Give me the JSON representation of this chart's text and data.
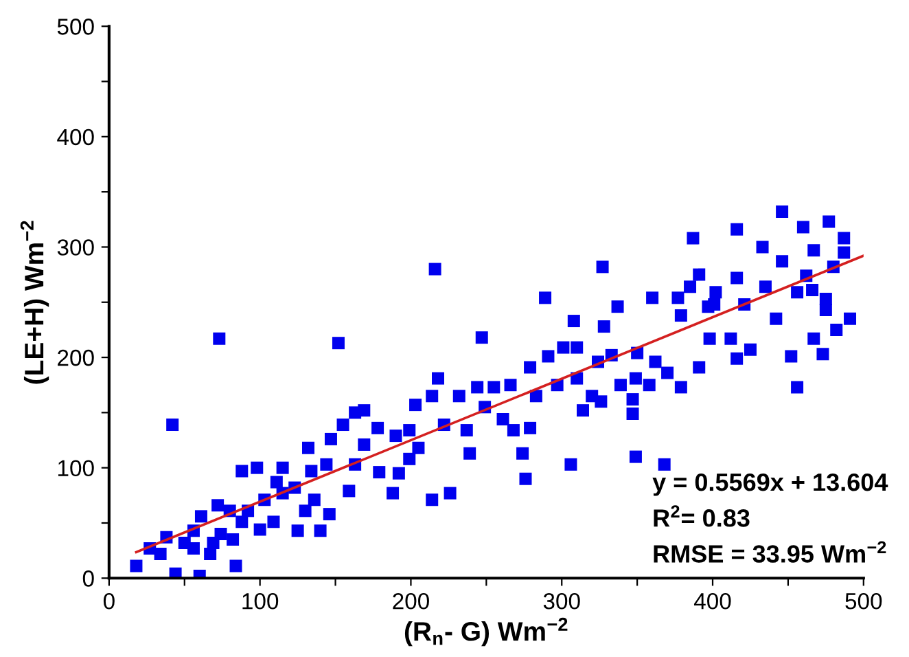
{
  "chart_data": {
    "type": "scatter",
    "xlabel": "(R$_{n}$- G) Wm$^{−2}$",
    "ylabel": "(LE+H) Wm$^{−2}$",
    "xlim": [
      0,
      500
    ],
    "ylim": [
      0,
      500
    ],
    "xticks": [
      0,
      {
        "value": 50,
        "label": null
      },
      100,
      {
        "value": 150,
        "label": null
      },
      200,
      {
        "value": 250,
        "label": null
      },
      300,
      {
        "value": 350,
        "label": null
      },
      400,
      {
        "value": 450,
        "label": null
      },
      500
    ],
    "yticks": [
      0,
      {
        "value": 50,
        "label": null
      },
      100,
      {
        "value": 150,
        "label": null
      },
      200,
      {
        "value": 250,
        "label": null
      },
      300,
      {
        "value": 350,
        "label": null
      },
      400,
      {
        "value": 450,
        "label": null
      },
      500
    ],
    "grid": false,
    "legend": false,
    "marker": "square",
    "series": [
      {
        "color": "#0000ee",
        "x": [
          18,
          73,
          42,
          44,
          60,
          84,
          27,
          34,
          38,
          50,
          56,
          61,
          56,
          69,
          74,
          72,
          80,
          88,
          88,
          98,
          100,
          103,
          109,
          111,
          115,
          123,
          125,
          130,
          132,
          134,
          140,
          144,
          146,
          147,
          159,
          155,
          163,
          169,
          152,
          163,
          169,
          179,
          178,
          188,
          190,
          192,
          199,
          199,
          203,
          205,
          214,
          214,
          216,
          218,
          226,
          222,
          232,
          237,
          239,
          244,
          247,
          249,
          255,
          261,
          266,
          268,
          274,
          276,
          279,
          279,
          283,
          289,
          291,
          297,
          301,
          306,
          308,
          310,
          314,
          320,
          324,
          326,
          327,
          328,
          333,
          337,
          339,
          347,
          349,
          347,
          350,
          360,
          358,
          362,
          368,
          370,
          377,
          379,
          379,
          385,
          387,
          391,
          391,
          397,
          398,
          402,
          412,
          416,
          416,
          416,
          421,
          425,
          433,
          435,
          442,
          446,
          446,
          452,
          456,
          456,
          460,
          462,
          466,
          467,
          467,
          473,
          475,
          477,
          480,
          482,
          487,
          491,
          487,
          475,
          115,
          82,
          67,
          136,
          92,
          310,
          349,
          401
        ],
        "values": [
          11,
          217,
          139,
          4,
          2,
          11,
          27,
          22,
          37,
          32,
          43,
          56,
          27,
          32,
          40,
          66,
          61,
          51,
          97,
          100,
          44,
          71,
          51,
          87,
          100,
          82,
          43,
          61,
          118,
          97,
          43,
          103,
          58,
          126,
          79,
          139,
          150,
          152,
          213,
          103,
          121,
          96,
          136,
          77,
          129,
          95,
          108,
          134,
          157,
          118,
          71,
          165,
          280,
          181,
          77,
          139,
          165,
          134,
          113,
          173,
          218,
          155,
          173,
          144,
          175,
          134,
          113,
          90,
          136,
          191,
          165,
          254,
          201,
          175,
          209,
          103,
          233,
          181,
          152,
          165,
          196,
          160,
          282,
          228,
          202,
          246,
          175,
          162,
          110,
          149,
          204,
          254,
          175,
          196,
          103,
          186,
          254,
          173,
          238,
          264,
          308,
          275,
          191,
          246,
          217,
          259,
          217,
          316,
          272,
          199,
          248,
          207,
          300,
          264,
          235,
          332,
          287,
          201,
          173,
          259,
          318,
          274,
          261,
          217,
          297,
          203,
          253,
          323,
          282,
          225,
          308,
          235,
          295,
          243,
          77,
          35,
          22,
          71,
          61,
          209,
          181,
          248
        ]
      },
      {
        "type": "line",
        "color": "#d42020",
        "marker": "none",
        "line_style": "solid",
        "x": [
          18,
          500
        ],
        "values": [
          23.6,
          292.1
        ]
      }
    ],
    "annotations": [
      "y = 0.5569x + 13.604",
      "R$^{2}$= 0.83",
      "RMSE = 33.95 Wm$^{−2}$"
    ]
  }
}
